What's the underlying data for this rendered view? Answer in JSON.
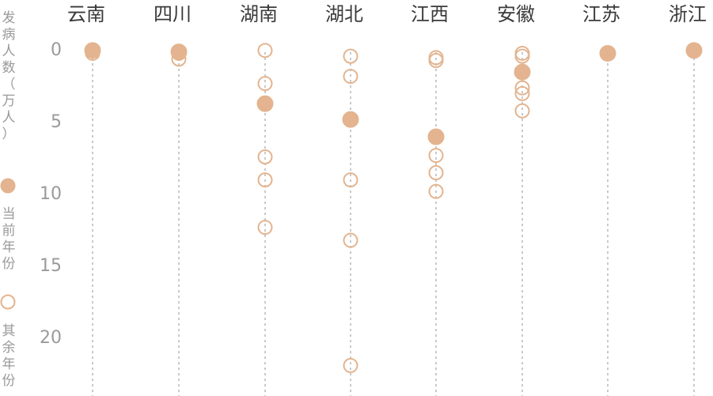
{
  "chart_data": {
    "type": "scatter",
    "title": "",
    "ylabel": "发病人数（万人）",
    "ylim": [
      0,
      23.5
    ],
    "yticks": [
      0,
      5,
      10,
      15,
      20
    ],
    "categories": [
      "云南",
      "四川",
      "湖南",
      "湖北",
      "江西",
      "安徽",
      "江苏",
      "浙江"
    ],
    "legend": [
      {
        "key": "current",
        "label": "当前年份"
      },
      {
        "key": "other",
        "label": "其余年份"
      }
    ],
    "series": [
      {
        "name": "当前年份",
        "key": "current",
        "values": [
          0.1,
          0.2,
          3.8,
          4.9,
          6.1,
          1.6,
          0.3,
          0.1
        ]
      },
      {
        "name": "其余年份",
        "key": "other",
        "values": [
          [
            0.1,
            0.3
          ],
          [
            0.3,
            0.7
          ],
          [
            0.1,
            2.4,
            7.5,
            9.1,
            12.4
          ],
          [
            0.5,
            1.9,
            9.1,
            13.3,
            22.0
          ],
          [
            0.6,
            0.8,
            7.4,
            8.6,
            9.9
          ],
          [
            0.3,
            0.5,
            2.7,
            3.1,
            4.3
          ],
          [
            0.3
          ],
          [
            0.1
          ]
        ]
      }
    ],
    "colors": {
      "marker": "#e3b48f",
      "guide": "#c9c9c9",
      "label": "#3a3a3a",
      "axis_text": "#9a9a9a"
    }
  }
}
